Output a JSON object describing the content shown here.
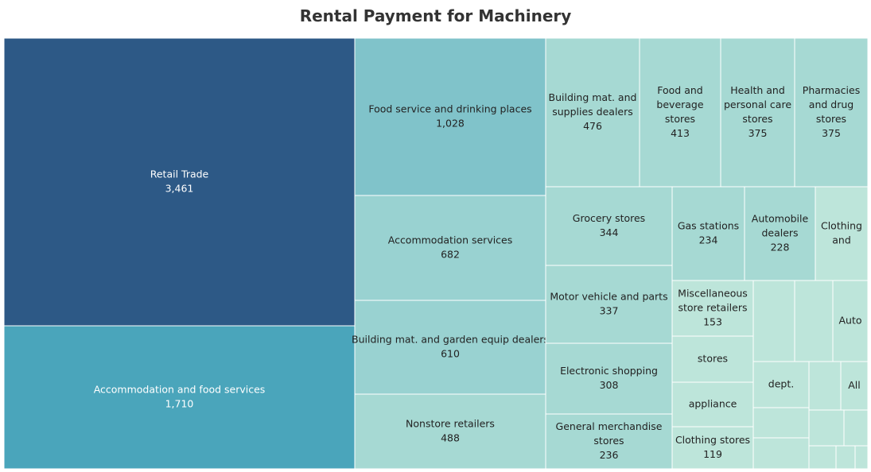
{
  "chart_data": {
    "type": "treemap",
    "title": "Rental Payment for Machinery",
    "colors": {
      "dark": "#2d5986",
      "mid": "#4aa5bb",
      "teal": "#80c3ca",
      "light": "#99d2d1",
      "lighter": "#a6d9d3",
      "lightest": "#bde5da",
      "border": "#ffffff"
    },
    "cells": [
      {
        "id": "retail-trade",
        "lines": [
          "Retail Trade"
        ],
        "value_text": "3,461",
        "value": 3461,
        "tone": "dark"
      },
      {
        "id": "accommodation-and-food-services",
        "lines": [
          "Accommodation and food services"
        ],
        "value_text": "1,710",
        "value": 1710,
        "tone": "mid"
      },
      {
        "id": "food-service-and-drinking-places",
        "lines": [
          "Food service and drinking places"
        ],
        "value_text": "1,028",
        "value": 1028,
        "tone": "teal"
      },
      {
        "id": "accommodation-services",
        "lines": [
          "Accommodation services"
        ],
        "value_text": "682",
        "value": 682,
        "tone": "light"
      },
      {
        "id": "building-mat-and-garden-equip-dealers",
        "lines": [
          "Building mat. and garden equip dealers"
        ],
        "value_text": "610",
        "value": 610,
        "tone": "light"
      },
      {
        "id": "nonstore-retailers",
        "lines": [
          "Nonstore retailers"
        ],
        "value_text": "488",
        "value": 488,
        "tone": "lighter"
      },
      {
        "id": "building-mat-and-supplies-dealers",
        "lines": [
          "Building mat. and",
          "supplies dealers"
        ],
        "value_text": "476",
        "value": 476,
        "tone": "lighter"
      },
      {
        "id": "food-and-beverage-stores",
        "lines": [
          "Food and",
          "beverage",
          "stores"
        ],
        "value_text": "413",
        "value": 413,
        "tone": "lighter"
      },
      {
        "id": "health-and-personal-care-stores",
        "lines": [
          "Health and",
          "personal care",
          "stores"
        ],
        "value_text": "375",
        "value": 375,
        "tone": "lighter"
      },
      {
        "id": "pharmacies-and-drug-stores",
        "lines": [
          "Pharmacies",
          "and drug",
          "stores"
        ],
        "value_text": "375",
        "value": 375,
        "tone": "lighter"
      },
      {
        "id": "grocery-stores",
        "lines": [
          "Grocery stores"
        ],
        "value_text": "344",
        "value": 344,
        "tone": "lighter"
      },
      {
        "id": "motor-vehicle-and-parts",
        "lines": [
          "Motor vehicle and parts"
        ],
        "value_text": "337",
        "value": 337,
        "tone": "lighter"
      },
      {
        "id": "electronic-shopping",
        "lines": [
          "Electronic shopping"
        ],
        "value_text": "308",
        "value": 308,
        "tone": "lighter"
      },
      {
        "id": "general-merchandise-stores",
        "lines": [
          "General merchandise",
          "stores"
        ],
        "value_text": "236",
        "value": 236,
        "tone": "lighter"
      },
      {
        "id": "gas-stations",
        "lines": [
          "Gas stations"
        ],
        "value_text": "234",
        "value": 234,
        "tone": "lighter"
      },
      {
        "id": "automobile-dealers",
        "lines": [
          "Automobile",
          "dealers"
        ],
        "value_text": "228",
        "value": 228,
        "tone": "lighter"
      },
      {
        "id": "clothing-and",
        "lines": [
          "Clothing",
          "and"
        ],
        "value_text": "",
        "tone": "lightest"
      },
      {
        "id": "miscellaneous-store-retailers",
        "lines": [
          "Miscellaneous",
          "store retailers"
        ],
        "value_text": "153",
        "value": 153,
        "tone": "lightest"
      },
      {
        "id": "clothing-stores",
        "lines": [
          "Clothing stores"
        ],
        "value_text": "119",
        "value": 119,
        "tone": "lightest"
      },
      {
        "id": "stores",
        "lines": [
          "stores"
        ],
        "value_text": "",
        "tone": "lightest"
      },
      {
        "id": "appliance",
        "lines": [
          "appliance"
        ],
        "value_text": "",
        "tone": "lightest"
      },
      {
        "id": "auto",
        "lines": [
          "Auto"
        ],
        "value_text": "",
        "tone": "lightest"
      },
      {
        "id": "dept",
        "lines": [
          "dept."
        ],
        "value_text": "",
        "tone": "lightest"
      },
      {
        "id": "all",
        "lines": [
          "All"
        ],
        "value_text": "",
        "tone": "lightest"
      },
      {
        "id": "unlabeled-1",
        "lines": [],
        "value_text": "",
        "tone": "lightest"
      },
      {
        "id": "unlabeled-2",
        "lines": [],
        "value_text": "",
        "tone": "lightest"
      },
      {
        "id": "unlabeled-3",
        "lines": [],
        "value_text": "",
        "tone": "lightest"
      },
      {
        "id": "unlabeled-4",
        "lines": [],
        "value_text": "",
        "tone": "lightest"
      },
      {
        "id": "unlabeled-5",
        "lines": [],
        "value_text": "",
        "tone": "lightest"
      },
      {
        "id": "unlabeled-6",
        "lines": [],
        "value_text": "",
        "tone": "lightest"
      },
      {
        "id": "unlabeled-7",
        "lines": [],
        "value_text": "",
        "tone": "lightest"
      },
      {
        "id": "unlabeled-8",
        "lines": [],
        "value_text": "",
        "tone": "lightest"
      },
      {
        "id": "unlabeled-9",
        "lines": [],
        "value_text": "",
        "tone": "lightest"
      },
      {
        "id": "unlabeled-10",
        "lines": [],
        "value_text": "",
        "tone": "lightest"
      }
    ]
  }
}
